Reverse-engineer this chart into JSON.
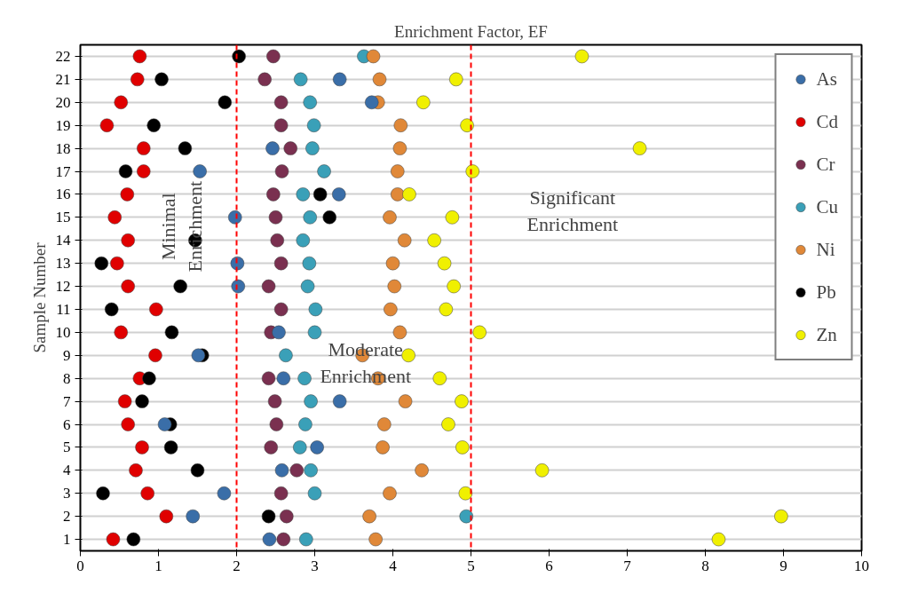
{
  "chart_data": {
    "type": "scatter",
    "title": "Enrichment Factor, EF",
    "ylabel": "Sample Number",
    "x": [
      1,
      2,
      3,
      4,
      5,
      6,
      7,
      8,
      9,
      10,
      11,
      12,
      13,
      14,
      15,
      16,
      17,
      18,
      19,
      20,
      21,
      22
    ],
    "series": [
      {
        "name": "As",
        "color": "#3a6ea8",
        "values": [
          2.42,
          1.44,
          1.84,
          2.58,
          3.03,
          1.08,
          3.32,
          2.6,
          1.51,
          2.54,
          null,
          2.02,
          2.01,
          null,
          1.98,
          3.31,
          1.53,
          2.46,
          null,
          3.73,
          3.32,
          null
        ]
      },
      {
        "name": "Cd",
        "color": "#e00000",
        "values": [
          0.42,
          1.1,
          0.86,
          0.71,
          0.79,
          0.61,
          0.57,
          0.76,
          0.96,
          0.52,
          0.97,
          0.61,
          0.47,
          0.61,
          0.44,
          0.6,
          0.81,
          0.81,
          0.34,
          0.52,
          0.73,
          0.76
        ]
      },
      {
        "name": "Cr",
        "color": "#7a3050",
        "values": [
          2.6,
          2.64,
          2.57,
          2.77,
          2.44,
          2.51,
          2.49,
          2.41,
          null,
          2.44,
          2.57,
          2.41,
          2.57,
          2.52,
          2.5,
          2.47,
          2.58,
          2.69,
          2.57,
          2.57,
          2.36,
          2.47
        ]
      },
      {
        "name": "Cu",
        "color": "#3aa0b8",
        "values": [
          2.89,
          4.94,
          3.0,
          2.95,
          2.81,
          2.88,
          2.95,
          2.87,
          2.63,
          3.0,
          3.01,
          2.91,
          2.93,
          2.85,
          2.94,
          2.85,
          3.12,
          2.97,
          2.99,
          2.94,
          2.82,
          3.63
        ]
      },
      {
        "name": "Ni",
        "color": "#e08838",
        "values": [
          3.78,
          3.7,
          3.96,
          4.37,
          3.87,
          3.89,
          4.16,
          3.81,
          3.61,
          4.09,
          3.97,
          4.02,
          4.0,
          4.15,
          3.96,
          4.06,
          4.06,
          4.09,
          4.1,
          3.81,
          3.83,
          3.75
        ]
      },
      {
        "name": "Pb",
        "color": "#000000",
        "values": [
          0.68,
          2.41,
          0.29,
          1.5,
          1.16,
          1.15,
          0.79,
          0.88,
          1.56,
          1.17,
          0.4,
          1.28,
          0.27,
          1.47,
          3.19,
          3.07,
          0.58,
          1.34,
          0.94,
          1.85,
          1.04,
          2.03
        ]
      },
      {
        "name": "Zn",
        "color": "#f0f000",
        "values": [
          8.17,
          8.97,
          4.93,
          5.91,
          4.89,
          4.71,
          4.88,
          4.6,
          4.2,
          5.11,
          4.68,
          4.78,
          4.66,
          4.53,
          4.76,
          4.21,
          5.02,
          7.16,
          4.95,
          4.39,
          4.81,
          6.42
        ]
      }
    ],
    "orientation": "horizontal",
    "xlim": [
      0,
      10
    ],
    "xticks": [
      0,
      1,
      2,
      3,
      4,
      5,
      6,
      7,
      8,
      9,
      10
    ],
    "ylim": [
      1,
      22
    ],
    "yticks": [
      1,
      2,
      3,
      4,
      5,
      6,
      7,
      8,
      9,
      10,
      11,
      12,
      13,
      14,
      15,
      16,
      17,
      18,
      19,
      20,
      21,
      22
    ],
    "grid": "y",
    "legend": "top right",
    "marker": "circle",
    "ref_lines": [
      {
        "axis": "x",
        "value": 2,
        "color": "#ff0000",
        "line_style": "dashed"
      },
      {
        "axis": "x",
        "value": 5,
        "color": "#ff0000",
        "line_style": "dashed"
      }
    ],
    "annotations": [
      "Minimal Enrichment",
      "Moderate Enrichment",
      "Significant Enrichment"
    ]
  }
}
